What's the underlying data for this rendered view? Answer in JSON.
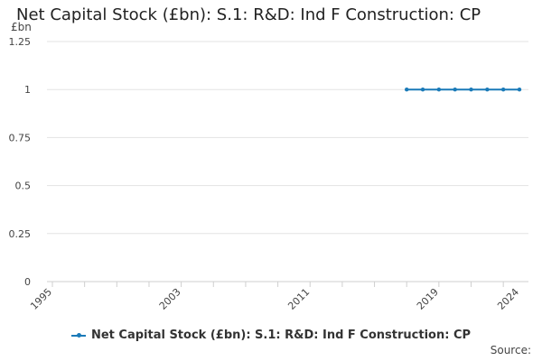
{
  "chart_data": {
    "type": "line",
    "title": "Net Capital Stock (£bn): S.1: R&D: Ind F Construction: CP",
    "unit_label": "£bn",
    "xlabel": "",
    "ylabel": "",
    "x_ticks": [
      "1995",
      "2003",
      "2011",
      "2019",
      "2024"
    ],
    "x_range": [
      1995,
      2024
    ],
    "y_ticks": [
      "0",
      "0.25",
      "0.5",
      "0.75",
      "1",
      "1.25"
    ],
    "ylim": [
      0,
      1.25
    ],
    "grid": true,
    "legend_position": "bottom",
    "series": [
      {
        "name": "Net Capital Stock (£bn): S.1: R&D: Ind F Construction: CP",
        "color": "#1a7ab8",
        "x": [
          2017,
          2018,
          2019,
          2020,
          2021,
          2022,
          2023,
          2024
        ],
        "y": [
          1,
          1,
          1,
          1,
          1,
          1,
          1,
          1
        ]
      }
    ]
  },
  "footer": {
    "source_label": "Source:"
  }
}
